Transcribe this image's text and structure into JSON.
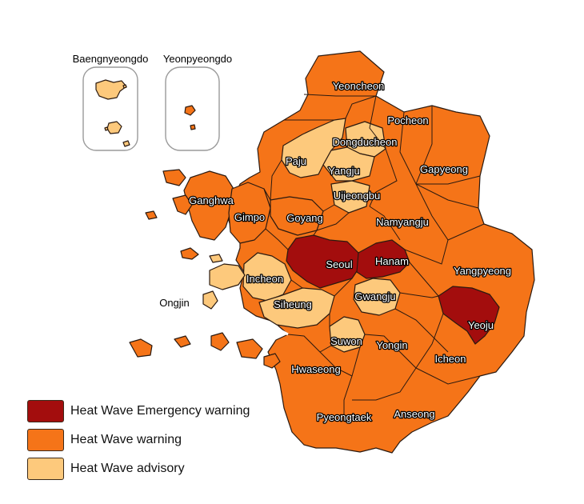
{
  "colors": {
    "emergency": "#a30d0d",
    "warning": "#f57418",
    "advisory": "#fdc97c",
    "border": "#2b1a10"
  },
  "insets": {
    "baengnyeongdo": "Baengnyeongdo",
    "yeonpyeongdo": "Yeonpyeongdo"
  },
  "labels": {
    "yeoncheon": "Yeoncheon",
    "pocheon": "Pocheon",
    "dongducheon": "Dongducheon",
    "paju": "Paju",
    "yangju": "Yangju",
    "gapyeong": "Gapyeong",
    "uijeongbu": "Uijeongbu",
    "ganghwa": "Ganghwa",
    "gimpo": "Gimpo",
    "goyang": "Goyang",
    "namyangju": "Namyangju",
    "seoul": "Seoul",
    "hanam": "Hanam",
    "yangpyeong": "Yangpyeong",
    "incheon": "Incheon",
    "ongjin": "Ongjin",
    "siheung": "Siheung",
    "gwangju": "Gwangju",
    "yeoju": "Yeoju",
    "suwon": "Suwon",
    "yongin": "Yongin",
    "icheon": "Icheon",
    "hwaseong": "Hwaseong",
    "pyeongtaek": "Pyeongtaek",
    "anseong": "Anseong"
  },
  "legend": [
    {
      "label": "Heat Wave Emergency warning",
      "level": "emergency"
    },
    {
      "label": "Heat Wave warning",
      "level": "warning"
    },
    {
      "label": "Heat Wave advisory",
      "level": "advisory"
    }
  ]
}
